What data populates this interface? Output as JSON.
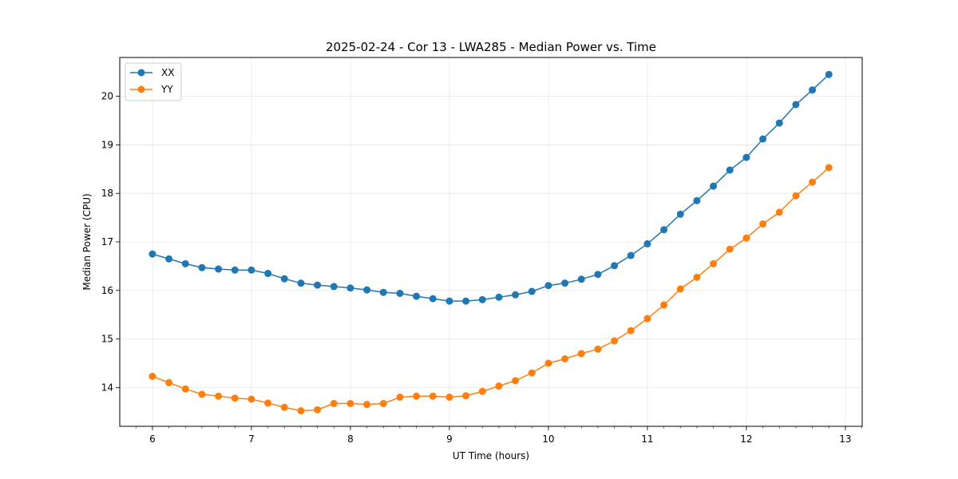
{
  "chart_data": {
    "type": "line",
    "title": "2025-02-24 - Cor 13 - LWA285 - Median Power vs. Time",
    "xlabel": "UT Time (hours)",
    "ylabel": "Median Power (CPU)",
    "xlim": [
      5.67,
      13.17
    ],
    "ylim": [
      13.2,
      20.8
    ],
    "xticks": [
      6,
      7,
      8,
      9,
      10,
      11,
      12,
      13
    ],
    "yticks": [
      14,
      15,
      16,
      17,
      18,
      19,
      20
    ],
    "grid": true,
    "legend_position": "upper-left",
    "x": [
      6.0,
      6.1667,
      6.3333,
      6.5,
      6.6667,
      6.8333,
      7.0,
      7.1667,
      7.3333,
      7.5,
      7.6667,
      7.8333,
      8.0,
      8.1667,
      8.3333,
      8.5,
      8.6667,
      8.8333,
      9.0,
      9.1667,
      9.3333,
      9.5,
      9.6667,
      9.8333,
      10.0,
      10.1667,
      10.3333,
      10.5,
      10.6667,
      10.8333,
      11.0,
      11.1667,
      11.3333,
      11.5,
      11.6667,
      11.8333,
      12.0,
      12.1667,
      12.3333,
      12.5,
      12.6667,
      12.8333
    ],
    "series": [
      {
        "name": "XX",
        "color": "#1f77b4",
        "values": [
          16.75,
          16.65,
          16.55,
          16.47,
          16.44,
          16.42,
          16.42,
          16.35,
          16.24,
          16.15,
          16.11,
          16.08,
          16.05,
          16.01,
          15.96,
          15.94,
          15.88,
          15.83,
          15.78,
          15.78,
          15.81,
          15.86,
          15.91,
          15.98,
          16.1,
          16.15,
          16.23,
          16.33,
          16.51,
          16.72,
          16.96,
          17.25,
          17.57,
          17.85,
          18.15,
          18.48,
          18.74,
          19.12,
          19.45,
          19.83,
          20.13,
          20.45
        ]
      },
      {
        "name": "YY",
        "color": "#ff7f0e",
        "values": [
          14.23,
          14.1,
          13.97,
          13.86,
          13.82,
          13.78,
          13.76,
          13.68,
          13.59,
          13.52,
          13.54,
          13.67,
          13.67,
          13.65,
          13.67,
          13.8,
          13.82,
          13.82,
          13.8,
          13.83,
          13.92,
          14.03,
          14.14,
          14.3,
          14.5,
          14.59,
          14.7,
          14.79,
          14.96,
          15.17,
          15.42,
          15.7,
          16.03,
          16.27,
          16.55,
          16.85,
          17.08,
          17.37,
          17.61,
          17.95,
          18.23,
          18.53
        ]
      }
    ]
  }
}
